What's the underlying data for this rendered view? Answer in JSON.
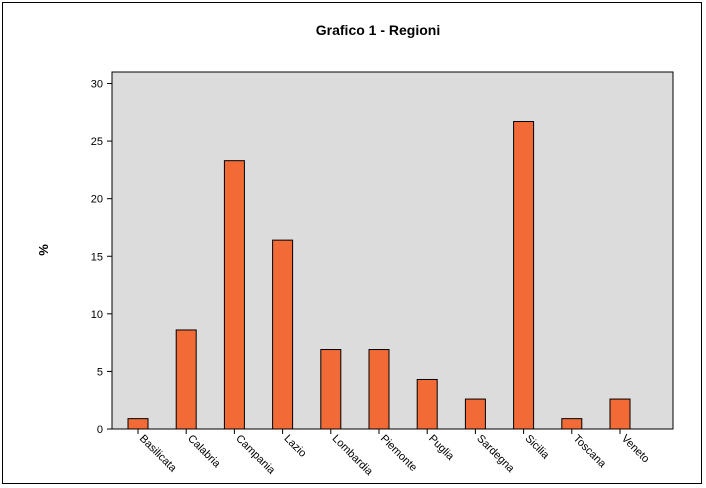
{
  "chart_data": {
    "type": "bar",
    "title": "Grafico 1 - Regioni",
    "xlabel": "",
    "ylabel": "%",
    "ylim": [
      0,
      31
    ],
    "yticks": [
      0,
      5,
      10,
      15,
      20,
      25,
      30
    ],
    "grid": false,
    "legend": "none",
    "categories": [
      "Basilicata",
      "Calabria",
      "Campania",
      "Lazio",
      "Lombardia",
      "Piemonte",
      "Puglia",
      "Sardegna",
      "Sicilia",
      "Toscana",
      "Veneto"
    ],
    "values": [
      0.9,
      8.6,
      23.3,
      16.4,
      6.9,
      6.9,
      4.3,
      2.6,
      26.7,
      0.9,
      2.6
    ],
    "colors": {
      "bar_fill": "#f26b36",
      "bar_stroke": "#000000",
      "plot_background": "#dcdcdc"
    }
  }
}
